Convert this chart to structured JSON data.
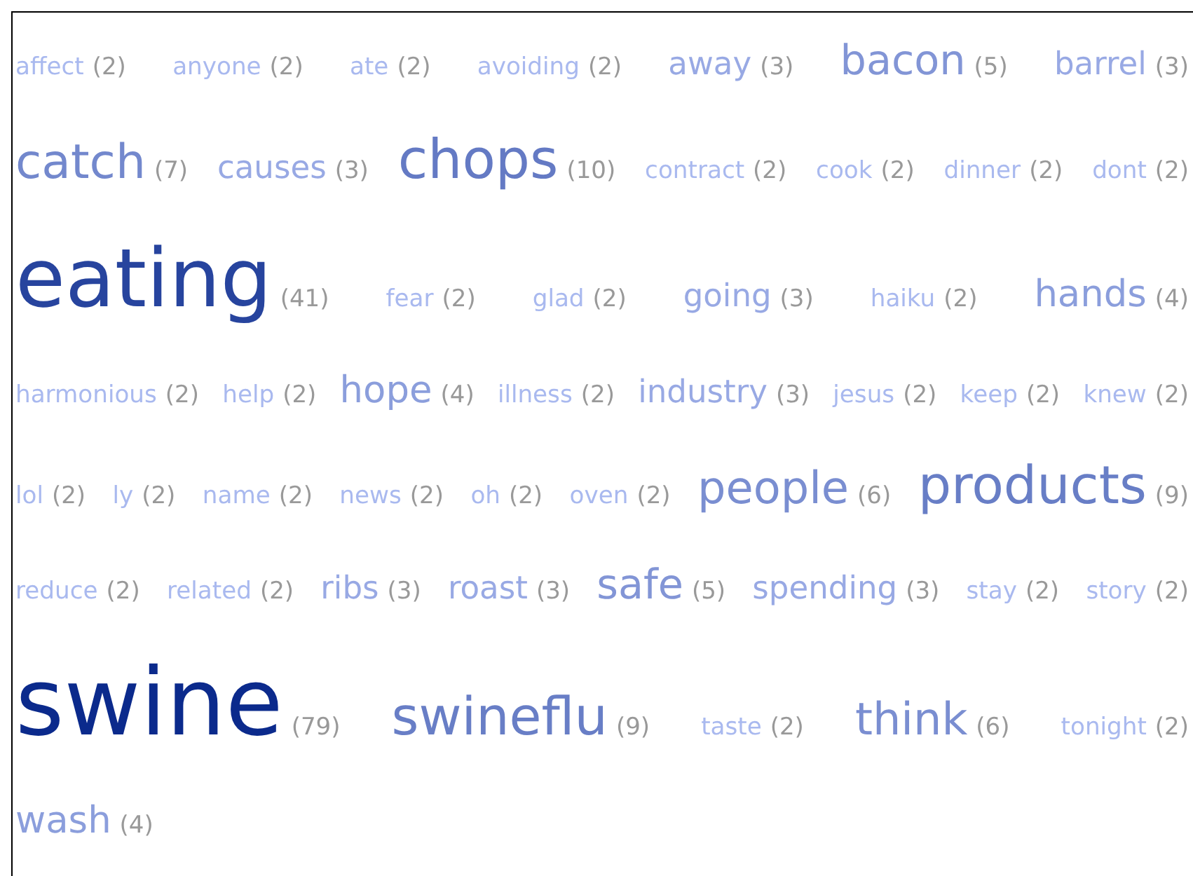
{
  "chart_data": {
    "type": "other",
    "categories": [
      "affect",
      "anyone",
      "ate",
      "avoiding",
      "away",
      "bacon",
      "barrel",
      "catch",
      "causes",
      "chops",
      "contract",
      "cook",
      "dinner",
      "dont",
      "eating",
      "fear",
      "glad",
      "going",
      "haiku",
      "hands",
      "harmonious",
      "help",
      "hope",
      "illness",
      "industry",
      "jesus",
      "keep",
      "knew",
      "lol",
      "ly",
      "name",
      "news",
      "oh",
      "oven",
      "people",
      "products",
      "reduce",
      "related",
      "ribs",
      "roast",
      "safe",
      "spending",
      "stay",
      "story",
      "swine",
      "swineflu",
      "taste",
      "think",
      "tonight",
      "wash"
    ],
    "values": [
      2,
      2,
      2,
      2,
      3,
      5,
      3,
      7,
      3,
      10,
      2,
      2,
      2,
      2,
      41,
      2,
      2,
      3,
      2,
      4,
      2,
      2,
      4,
      2,
      3,
      2,
      2,
      2,
      2,
      2,
      2,
      2,
      2,
      2,
      6,
      9,
      2,
      2,
      3,
      3,
      5,
      3,
      2,
      2,
      79,
      9,
      2,
      6,
      2,
      4
    ],
    "value_labels": [
      "(2)",
      "(2)",
      "(2)",
      "(2)",
      "(3)",
      "(5)",
      "(3)",
      "(7)",
      "(3)",
      "(10)",
      "(2)",
      "(2)",
      "(2)",
      "(2)",
      "(41)",
      "(2)",
      "(2)",
      "(3)",
      "(2)",
      "(4)",
      "(2)",
      "(2)",
      "(4)",
      "(2)",
      "(3)",
      "(2)",
      "(2)",
      "(2)",
      "(2)",
      "(2)",
      "(2)",
      "(2)",
      "(2)",
      "(2)",
      "(6)",
      "(9)",
      "(2)",
      "(2)",
      "(3)",
      "(3)",
      "(5)",
      "(3)",
      "(2)",
      "(2)",
      "(79)",
      "(9)",
      "(2)",
      "(6)",
      "(2)",
      "(4)"
    ]
  }
}
